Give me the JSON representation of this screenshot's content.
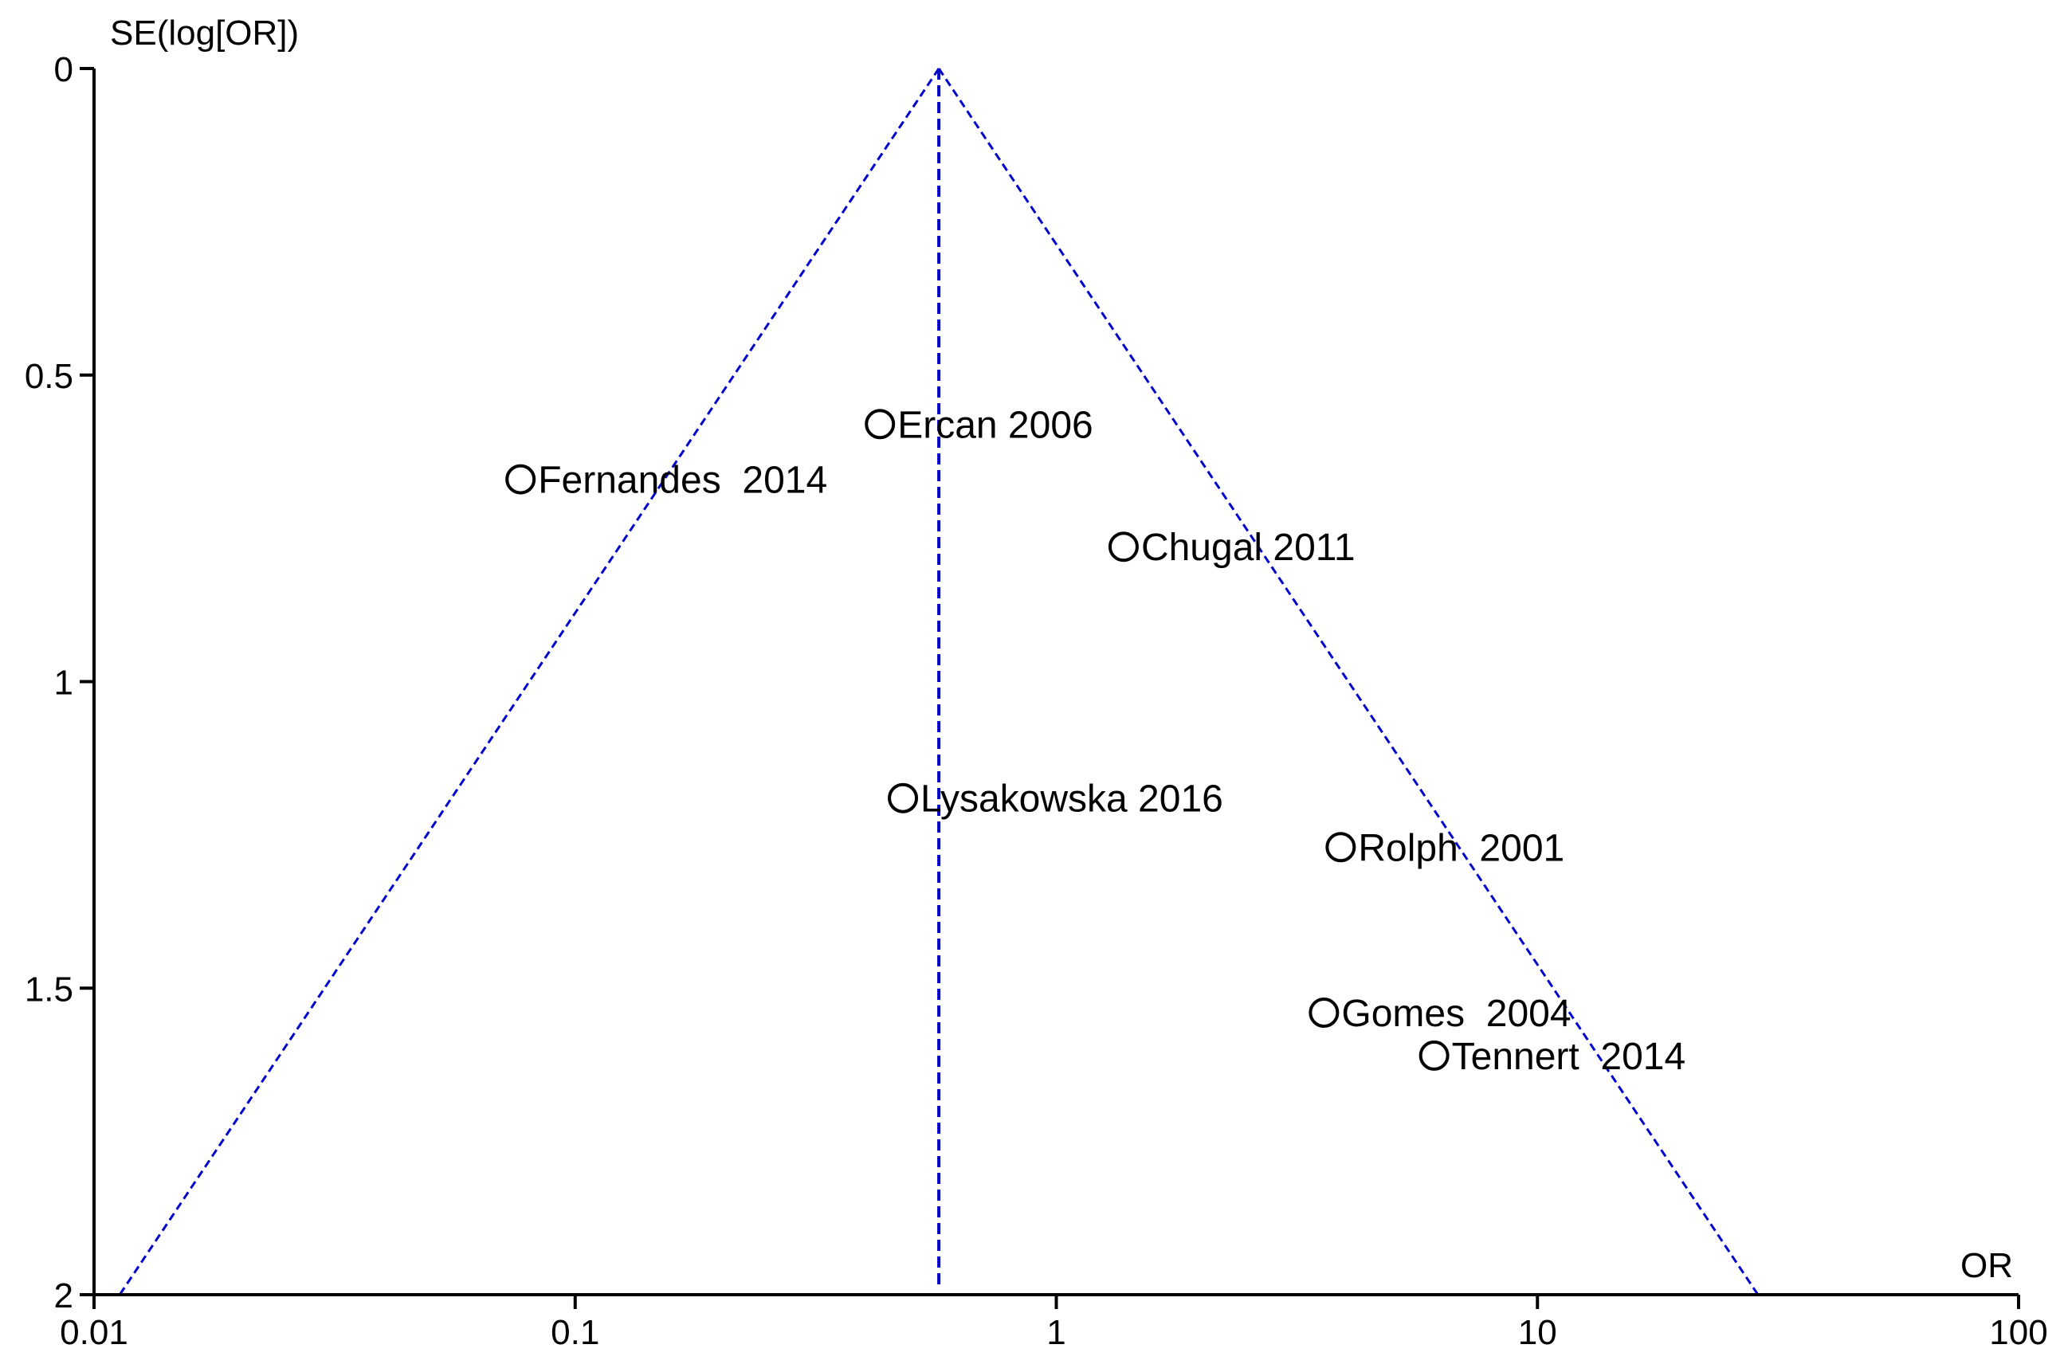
{
  "chart_data": {
    "type": "scatter",
    "title": "",
    "xlabel": "OR",
    "ylabel": "SE(log[OR])",
    "x_scale": "log",
    "xlim": [
      0.01,
      100
    ],
    "ylim": [
      0,
      2
    ],
    "y_inverted": true,
    "x_ticks": [
      0.01,
      0.1,
      1,
      10,
      100
    ],
    "x_tick_labels": [
      "0.01",
      "0.1",
      "1",
      "10",
      "100"
    ],
    "y_ticks": [
      0,
      0.5,
      1,
      1.5,
      2
    ],
    "y_tick_labels": [
      "0",
      "0.5",
      "1",
      "1.5",
      "2"
    ],
    "grid": false,
    "pooled_or": 0.57,
    "pseudo_ci_line_color": "#0000cc",
    "marker_color": "#000000",
    "points": [
      {
        "label": "Ercan 2006",
        "or": 0.43,
        "se": 0.58
      },
      {
        "label": "Fernandes  2014",
        "or": 0.077,
        "se": 0.67
      },
      {
        "label": "Chugal 2011",
        "or": 1.38,
        "se": 0.78
      },
      {
        "label": "Lysakowska 2016",
        "or": 0.48,
        "se": 1.19
      },
      {
        "label": "Rolph  2001",
        "or": 3.9,
        "se": 1.27
      },
      {
        "label": "Gomes  2004",
        "or": 3.6,
        "se": 1.54
      },
      {
        "label": "Tennert  2014",
        "or": 6.1,
        "se": 1.61
      }
    ]
  }
}
